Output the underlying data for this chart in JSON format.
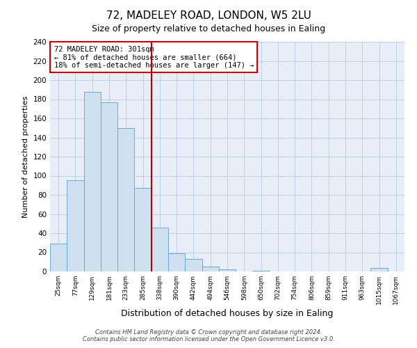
{
  "title": "72, MADELEY ROAD, LONDON, W5 2LU",
  "subtitle": "Size of property relative to detached houses in Ealing",
  "xlabel": "Distribution of detached houses by size in Ealing",
  "ylabel": "Number of detached properties",
  "bin_labels": [
    "25sqm",
    "77sqm",
    "129sqm",
    "181sqm",
    "233sqm",
    "285sqm",
    "338sqm",
    "390sqm",
    "442sqm",
    "494sqm",
    "546sqm",
    "598sqm",
    "650sqm",
    "702sqm",
    "754sqm",
    "806sqm",
    "859sqm",
    "911sqm",
    "963sqm",
    "1015sqm",
    "1067sqm"
  ],
  "bar_heights": [
    29,
    95,
    188,
    177,
    150,
    87,
    46,
    19,
    13,
    5,
    2,
    0,
    1,
    0,
    0,
    0,
    0,
    0,
    0,
    4,
    0
  ],
  "bar_color": "#cfe0f0",
  "bar_edge_color": "#6aaad4",
  "vline_x_index": 5.5,
  "vline_color": "#bb0000",
  "annotation_text": "72 MADELEY ROAD: 301sqm\n← 81% of detached houses are smaller (664)\n18% of semi-detached houses are larger (147) →",
  "annotation_box_color": "#ffffff",
  "annotation_box_edge": "#cc0000",
  "ylim": [
    0,
    240
  ],
  "yticks": [
    0,
    20,
    40,
    60,
    80,
    100,
    120,
    140,
    160,
    180,
    200,
    220,
    240
  ],
  "footer_line1": "Contains HM Land Registry data © Crown copyright and database right 2024.",
  "footer_line2": "Contains public sector information licensed under the Open Government Licence v3.0.",
  "background_color": "#ffffff",
  "plot_bg_color": "#e8eef8",
  "grid_color": "#b8c8dc",
  "title_fontsize": 11,
  "subtitle_fontsize": 9,
  "ylabel_fontsize": 8,
  "xlabel_fontsize": 9
}
